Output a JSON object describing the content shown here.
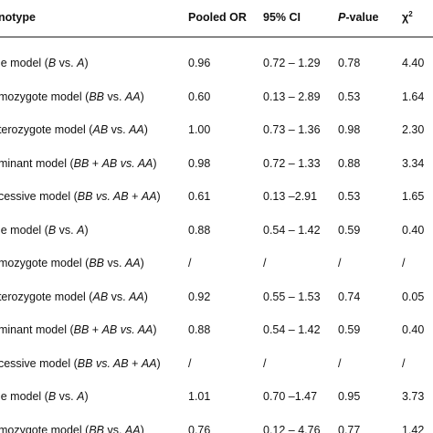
{
  "header": {
    "genotype": "enotype",
    "pooled_or": "Pooled OR",
    "ci": "95% CI",
    "p_italic": "P",
    "p_rest": "-value",
    "chi": "χ",
    "chi_sup": "2"
  },
  "rows": [
    {
      "pre": "ele model (",
      "a": "B",
      "mid": " vs. ",
      "b": "A",
      "post": ")",
      "or": "0.96",
      "ci": "0.72 – 1.29",
      "p": "0.78",
      "chi": "4.40"
    },
    {
      "pre": "omozygote model (",
      "a": "BB",
      "mid": " vs. ",
      "b": "AA",
      "post": ")",
      "or": "0.60",
      "ci": "0.13 – 2.89",
      "p": "0.53",
      "chi": "1.64"
    },
    {
      "pre": "eterozygote model (",
      "a": "AB",
      "mid": " vs. ",
      "b": "AA",
      "post": ")",
      "or": "1.00",
      "ci": "0.73 – 1.36",
      "p": "0.98",
      "chi": "2.30"
    },
    {
      "pre": "ominant model (",
      "a": "BB",
      "mid": " + ",
      "b": "AB vs. AA",
      "post": ")",
      "or": "0.98",
      "ci": "0.72 – 1.33",
      "p": "0.88",
      "chi": "3.34"
    },
    {
      "pre": "ecessive model (",
      "a": "BB vs. AB",
      "mid": " + ",
      "b": "AA",
      "post": ")",
      "or": "0.61",
      "ci": "0.13 –2.91",
      "p": "0.53",
      "chi": "1.65"
    },
    {
      "pre": "ele model (",
      "a": "B",
      "mid": " vs. ",
      "b": "A",
      "post": ")",
      "or": "0.88",
      "ci": "0.54 – 1.42",
      "p": "0.59",
      "chi": "0.40"
    },
    {
      "pre": "omozygote model (",
      "a": "BB",
      "mid": " vs. ",
      "b": "AA",
      "post": ")",
      "or": "/",
      "ci": "/",
      "p": "/",
      "chi": "/"
    },
    {
      "pre": "eterozygote model (",
      "a": "AB",
      "mid": " vs. ",
      "b": "AA",
      "post": ")",
      "or": "0.92",
      "ci": "0.55 – 1.53",
      "p": "0.74",
      "chi": "0.05"
    },
    {
      "pre": "ominant model (",
      "a": "BB",
      "mid": " + ",
      "b": "AB vs. AA",
      "post": ")",
      "or": "0.88",
      "ci": "0.54 – 1.42",
      "p": "0.59",
      "chi": "0.40"
    },
    {
      "pre": "ecessive model (",
      "a": "BB vs. AB",
      "mid": " + ",
      "b": "AA",
      "post": ")",
      "or": "/",
      "ci": "/",
      "p": "/",
      "chi": "/"
    },
    {
      "pre": "ele model (",
      "a": "B",
      "mid": " vs. ",
      "b": "A",
      "post": ")",
      "or": "1.01",
      "ci": "0.70 –1.47",
      "p": "0.95",
      "chi": "3.73"
    },
    {
      "pre": "omozygote model (",
      "a": "BB",
      "mid": " vs. ",
      "b": "AA",
      "post": ")",
      "or": "0.76",
      "ci": "0.12 – 4.76",
      "p": "0.77",
      "chi": "1.42"
    }
  ]
}
